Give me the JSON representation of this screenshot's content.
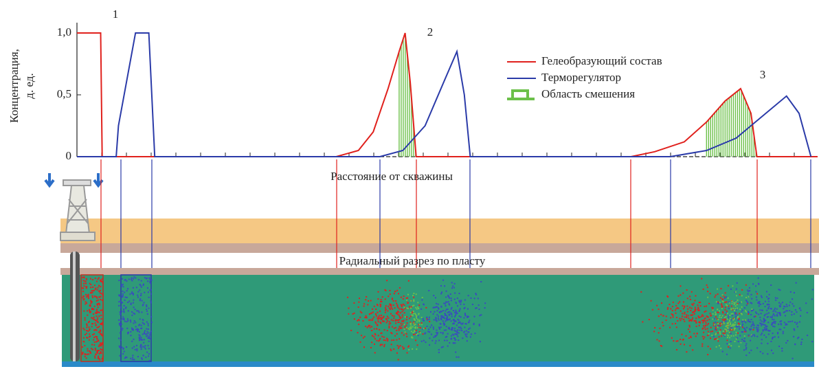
{
  "chart_data": {
    "type": "line",
    "y_label_line1": "Концентрация,",
    "y_label_line2": "д. ед.",
    "x_label": "Расстояние от скважины",
    "section_label": "Радиальный разрез по пласту",
    "annotations": [
      "1",
      "2",
      "3"
    ],
    "xlim": [
      0,
      100
    ],
    "ylim": [
      0,
      1.05
    ],
    "yticks": [
      0,
      {
        "value": 0.5,
        "label": "0,5"
      },
      {
        "value": 1,
        "label": "1,0"
      }
    ],
    "series": [
      {
        "name": "Гелеобразующий состав",
        "color": "#e0201c",
        "x": [
          0,
          3.2,
          3.4,
          35,
          38,
          40,
          42,
          43.5,
          44.3,
          45,
          45.8,
          74.8,
          78,
          82,
          85,
          87.5,
          89.6,
          91,
          91.8,
          100
        ],
        "values": [
          1,
          1,
          0,
          0,
          0.05,
          0.2,
          0.55,
          0.85,
          1,
          0.6,
          0,
          0,
          0.04,
          0.12,
          0.28,
          0.45,
          0.55,
          0.35,
          0,
          0
        ]
      },
      {
        "name": "Терморегулятор",
        "color": "#2a3aa8",
        "x": [
          0,
          5.3,
          5.6,
          7.9,
          9.7,
          10.5,
          40.9,
          44,
          47,
          49.5,
          51.3,
          52.3,
          53.1,
          80.1,
          85,
          89,
          93,
          95.8,
          97.5,
          99.1
        ],
        "values": [
          0,
          0,
          0.25,
          1,
          1,
          0,
          0,
          0.05,
          0.25,
          0.6,
          0.85,
          0.5,
          0,
          0,
          0.05,
          0.15,
          0.35,
          0.49,
          0.35,
          0
        ]
      }
    ],
    "mix_name": "Область смешения",
    "mix_color": "#6cc04a",
    "mix_zones": [
      [
        43.5,
        45.8
      ],
      [
        85,
        91.8
      ]
    ]
  }
}
